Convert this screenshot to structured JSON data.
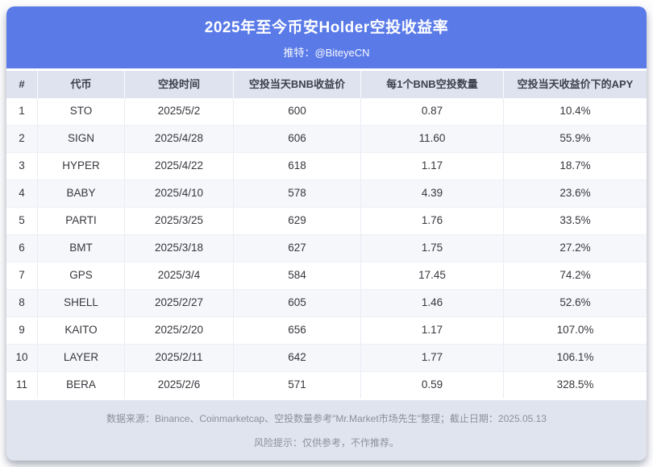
{
  "header": {
    "title": "2025年至今币安Holder空投收益率",
    "subtitle": "推特：@BiteyeCN"
  },
  "chart_data": {
    "type": "table",
    "title": "2025年至今币安Holder空投收益率",
    "columns": [
      "#",
      "代币",
      "空投时间",
      "空投当天BNB收益价",
      "每1个BNB空投数量",
      "空投当天收益价下的APY"
    ],
    "rows": [
      [
        "1",
        "STO",
        "2025/5/2",
        "600",
        "0.87",
        "10.4%"
      ],
      [
        "2",
        "SIGN",
        "2025/4/28",
        "606",
        "11.60",
        "55.9%"
      ],
      [
        "3",
        "HYPER",
        "2025/4/22",
        "618",
        "1.17",
        "18.7%"
      ],
      [
        "4",
        "BABY",
        "2025/4/10",
        "578",
        "4.39",
        "23.6%"
      ],
      [
        "5",
        "PARTI",
        "2025/3/25",
        "629",
        "1.76",
        "33.5%"
      ],
      [
        "6",
        "BMT",
        "2025/3/18",
        "627",
        "1.75",
        "27.2%"
      ],
      [
        "7",
        "GPS",
        "2025/3/4",
        "584",
        "17.45",
        "74.2%"
      ],
      [
        "8",
        "SHELL",
        "2025/2/27",
        "605",
        "1.46",
        "52.6%"
      ],
      [
        "9",
        "KAITO",
        "2025/2/20",
        "656",
        "1.17",
        "107.0%"
      ],
      [
        "10",
        "LAYER",
        "2025/2/11",
        "642",
        "1.77",
        "106.1%"
      ],
      [
        "11",
        "BERA",
        "2025/2/6",
        "571",
        "0.59",
        "328.5%"
      ]
    ],
    "column_keys": [
      "index",
      "token",
      "airdrop-date",
      "bnb-price",
      "bnb-airdrop-amount",
      "apy"
    ]
  },
  "footer": {
    "source_line": "数据来源：Binance、Coinmarketcap、空投数量参考\"Mr.Market市场先生\"整理；截止日期：2025.05.13",
    "risk_line": "风险提示：仅供参考，不作推荐。"
  },
  "colors": {
    "accent_blue": "#5a7ae8",
    "thead_bg": "#dee3ef",
    "row_alt_bg": "#f6f7fb",
    "footer_bg": "#e0e4ee",
    "body_text": "#36373d",
    "footer_text": "#8b909c"
  }
}
